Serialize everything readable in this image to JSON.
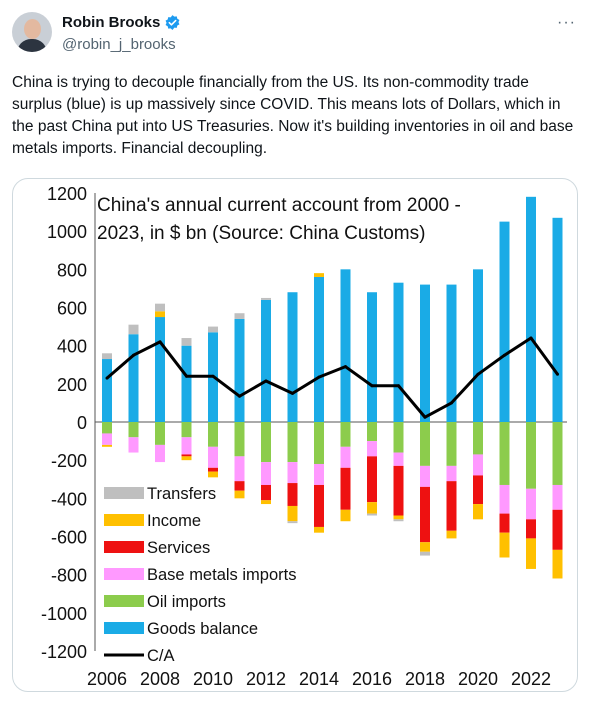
{
  "author": {
    "name": "Robin Brooks",
    "handle": "@robin_j_brooks",
    "verified_icon": "verified-badge-icon",
    "more_icon": "more-options-icon"
  },
  "tweet": {
    "text": "China is trying to decouple financially from the US. Its non-commodity trade surplus (blue) is up massively since COVID. This means lots of Dollars, which in the past China put into US Treasuries. Now it's building inventories in oil and base metals imports. Financial decoupling."
  },
  "colors": {
    "goods": "#1aabe6",
    "oil": "#8ccc4c",
    "base_metals": "#ff99ff",
    "services": "#ee1111",
    "income": "#ffc000",
    "transfers": "#bfbfbf",
    "ca": "#000000"
  },
  "chart_data": {
    "type": "bar",
    "title": "China's annual current account from 2000 - 2023, in $ bn (Source: China Customs)",
    "title_lines": [
      "China's annual current account from 2000 -",
      "2023, in $ bn (Source: China Customs)"
    ],
    "stacked": true,
    "ylim": [
      -1200,
      1200
    ],
    "yticks": [
      1200,
      1000,
      800,
      600,
      400,
      200,
      0,
      -200,
      -400,
      -600,
      -800,
      -1000,
      -1200
    ],
    "xticks": [
      "2006",
      "2008",
      "2010",
      "2012",
      "2014",
      "2016",
      "2018",
      "2020",
      "2022"
    ],
    "categories": [
      "2006",
      "2007",
      "2008",
      "2009",
      "2010",
      "2011",
      "2012",
      "2013",
      "2014",
      "2015",
      "2016",
      "2017",
      "2018",
      "2019",
      "2020",
      "2021",
      "2022",
      "2023"
    ],
    "grid": false,
    "legend_position": "bottom-left",
    "series": [
      {
        "name": "Transfers",
        "key": "transfers",
        "values": [
          30,
          50,
          40,
          40,
          30,
          30,
          10,
          0,
          0,
          0,
          0,
          0,
          0,
          0,
          0,
          0,
          0,
          0
        ],
        "neg_values": [
          0,
          0,
          0,
          0,
          0,
          0,
          0,
          -10,
          0,
          0,
          -10,
          -10,
          -20,
          0,
          0,
          0,
          0,
          0
        ]
      },
      {
        "name": "Income",
        "key": "income",
        "values": [
          0,
          0,
          30,
          0,
          0,
          0,
          0,
          0,
          20,
          0,
          0,
          0,
          0,
          0,
          0,
          0,
          0,
          0
        ],
        "neg_values": [
          -10,
          0,
          0,
          -20,
          -30,
          -40,
          -20,
          -80,
          -30,
          -60,
          -60,
          -20,
          -50,
          -40,
          -80,
          -130,
          -160,
          -150
        ]
      },
      {
        "name": "Services",
        "key": "services",
        "values": [
          0,
          0,
          0,
          0,
          0,
          0,
          0,
          0,
          0,
          0,
          0,
          0,
          0,
          0,
          0,
          0,
          0,
          0
        ],
        "neg_values": [
          0,
          0,
          0,
          -10,
          -20,
          -50,
          -80,
          -120,
          -220,
          -220,
          -240,
          -260,
          -290,
          -260,
          -150,
          -100,
          -100,
          -210
        ]
      },
      {
        "name": "Base metals imports",
        "key": "base_metals",
        "values": [
          0,
          0,
          0,
          0,
          0,
          0,
          0,
          0,
          0,
          0,
          0,
          0,
          0,
          0,
          0,
          0,
          0,
          0
        ],
        "neg_values": [
          -60,
          -80,
          -90,
          -90,
          -110,
          -130,
          -120,
          -110,
          -110,
          -110,
          -80,
          -70,
          -110,
          -80,
          -110,
          -150,
          -160,
          -130
        ]
      },
      {
        "name": "Oil imports",
        "key": "oil",
        "values": [
          0,
          0,
          0,
          0,
          0,
          0,
          0,
          0,
          0,
          0,
          0,
          0,
          0,
          0,
          0,
          0,
          0,
          0
        ],
        "neg_values": [
          -60,
          -80,
          -120,
          -80,
          -130,
          -180,
          -210,
          -210,
          -220,
          -130,
          -100,
          -160,
          -230,
          -230,
          -170,
          -330,
          -350,
          -330
        ]
      },
      {
        "name": "Goods balance",
        "key": "goods",
        "values": [
          330,
          460,
          550,
          400,
          470,
          540,
          640,
          680,
          760,
          800,
          680,
          730,
          720,
          720,
          800,
          1050,
          1180,
          1070
        ],
        "neg_values": [
          0,
          0,
          0,
          0,
          0,
          0,
          0,
          0,
          0,
          0,
          0,
          0,
          0,
          0,
          0,
          0,
          0,
          0
        ]
      }
    ],
    "line_series": {
      "name": "C/A",
      "key": "ca",
      "values": [
        230,
        350,
        420,
        240,
        240,
        135,
        215,
        150,
        235,
        290,
        190,
        190,
        25,
        100,
        250,
        350,
        440,
        250
      ]
    }
  }
}
